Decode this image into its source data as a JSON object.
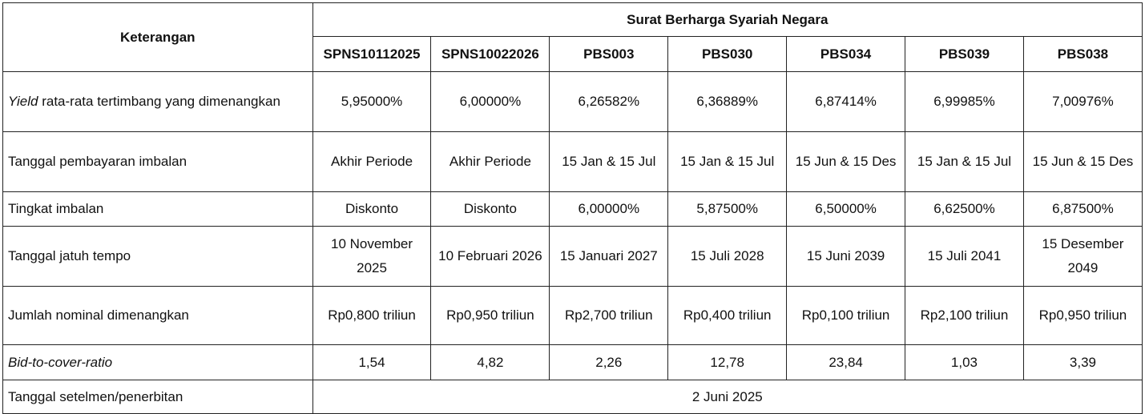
{
  "table": {
    "label_header": "Keterangan",
    "group_header": "Surat Berharga Syariah Negara",
    "columns": [
      "SPNS10112025",
      "SPNS10022026",
      "PBS003",
      "PBS030",
      "PBS034",
      "PBS039",
      "PBS038"
    ],
    "rows": [
      {
        "label_italic": "Yield",
        "label_rest": " rata-rata tertimbang yang dimenangkan",
        "values": [
          "5,95000%",
          "6,00000%",
          "6,26582%",
          "6,36889%",
          "6,87414%",
          "6,99985%",
          "7,00976%"
        ]
      },
      {
        "label": "Tanggal pembayaran imbalan",
        "values": [
          "Akhir Periode",
          "Akhir Periode",
          "15 Jan & 15 Jul",
          "15 Jan & 15 Jul",
          "15 Jun & 15 Des",
          "15 Jan & 15 Jul",
          "15 Jun & 15 Des"
        ]
      },
      {
        "label": "Tingkat imbalan",
        "values": [
          "Diskonto",
          "Diskonto",
          "6,00000%",
          "5,87500%",
          "6,50000%",
          "6,62500%",
          "6,87500%"
        ]
      },
      {
        "label": "Tanggal jatuh tempo",
        "values": [
          "10 November 2025",
          "10 Februari 2026",
          "15 Januari 2027",
          "15 Juli 2028",
          "15 Juni 2039",
          "15 Juli 2041",
          "15 Desember 2049"
        ]
      },
      {
        "label": "Jumlah nominal dimenangkan",
        "values": [
          "Rp0,800 triliun",
          "Rp0,950 triliun",
          "Rp2,700 triliun",
          "Rp0,400 triliun",
          "Rp0,100 triliun",
          "Rp2,100 triliun",
          "Rp0,950 triliun"
        ]
      },
      {
        "label_italic": "Bid-to-cover-ratio",
        "values": [
          "1,54",
          "4,82",
          "2,26",
          "12,78",
          "23,84",
          "1,03",
          "3,39"
        ]
      }
    ],
    "settlement": {
      "label": "Tanggal setelmen/penerbitan",
      "value": "2 Juni 2025"
    }
  }
}
